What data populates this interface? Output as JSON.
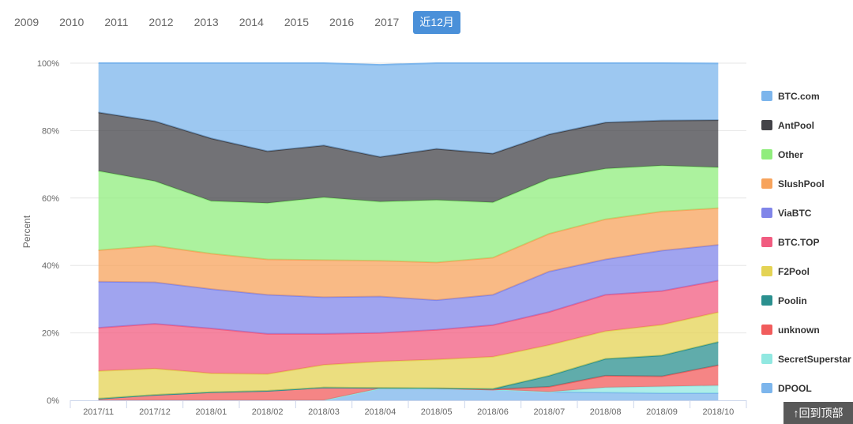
{
  "year_tabs": [
    "2009",
    "2010",
    "2011",
    "2012",
    "2013",
    "2014",
    "2015",
    "2016",
    "2017",
    "近12月"
  ],
  "active_tab": "近12月",
  "back_to_top": "↑回到顶部",
  "chart_data": {
    "type": "area",
    "stacked": "percent",
    "ylabel": "Percent",
    "ylim": [
      0,
      100
    ],
    "yticks": [
      "0%",
      "20%",
      "40%",
      "60%",
      "80%",
      "100%"
    ],
    "categories": [
      "2017/11",
      "2017/12",
      "2018/01",
      "2018/02",
      "2018/03",
      "2018/04",
      "2018/05",
      "2018/06",
      "2018/07",
      "2018/08",
      "2018/09",
      "2018/10"
    ],
    "grid": true,
    "legend_position": "right",
    "series": [
      {
        "name": "DPOOL",
        "color": "#7cb5ec",
        "values": [
          0,
          0,
          0,
          0,
          0,
          3.5,
          3.5,
          3.2,
          2.5,
          2.3,
          2.1,
          2.1
        ]
      },
      {
        "name": "SecretSuperstar",
        "color": "#91e8e1",
        "values": [
          0,
          0,
          0,
          0,
          0,
          0,
          0,
          0,
          0,
          1.5,
          2.0,
          2.3
        ]
      },
      {
        "name": "unknown",
        "color": "#f15c5c",
        "values": [
          0.5,
          1.6,
          2.4,
          2.8,
          3.8,
          0.2,
          0.1,
          0,
          1.5,
          3.5,
          3.0,
          6.0
        ]
      },
      {
        "name": "Poolin",
        "color": "#2b908f",
        "values": [
          0,
          0,
          0,
          0,
          0,
          0,
          0,
          0.2,
          3.3,
          5.0,
          6.2,
          6.9
        ]
      },
      {
        "name": "F2Pool",
        "color": "#e4d354",
        "values": [
          8.2,
          7.8,
          5.6,
          5.0,
          6.7,
          7.8,
          8.5,
          9.5,
          9.1,
          8.2,
          9.1,
          8.8
        ]
      },
      {
        "name": "BTC.TOP",
        "color": "#f15c80",
        "values": [
          12.8,
          13.3,
          13.3,
          11.9,
          9.2,
          8.5,
          8.8,
          9.4,
          9.8,
          10.8,
          10.0,
          9.4
        ]
      },
      {
        "name": "ViaBTC",
        "color": "#8085e9",
        "values": [
          13.7,
          12.3,
          11.7,
          11.6,
          10.9,
          10.8,
          8.8,
          9.0,
          12.0,
          10.5,
          12.0,
          10.6
        ]
      },
      {
        "name": "SlushPool",
        "color": "#f7a35c",
        "values": [
          9.3,
          10.8,
          10.5,
          10.5,
          11.0,
          10.6,
          11.2,
          11.0,
          11.2,
          11.9,
          11.6,
          10.9
        ]
      },
      {
        "name": "Other",
        "color": "#90ed7d",
        "values": [
          23.5,
          19.2,
          15.6,
          16.7,
          18.6,
          17.5,
          18.5,
          16.4,
          16.3,
          15.0,
          13.6,
          12.1
        ]
      },
      {
        "name": "AntPool",
        "color": "#434348",
        "values": [
          17.4,
          17.8,
          18.6,
          15.4,
          15.4,
          13.3,
          15.2,
          14.5,
          13.2,
          13.7,
          13.4,
          14.0
        ]
      },
      {
        "name": "BTC.com",
        "color": "#7cb5ec",
        "values": [
          14.6,
          17.2,
          22.3,
          26.1,
          24.4,
          27.3,
          25.4,
          26.8,
          21.1,
          17.6,
          17.0,
          16.8
        ]
      }
    ],
    "legend_order": [
      "BTC.com",
      "AntPool",
      "Other",
      "SlushPool",
      "ViaBTC",
      "BTC.TOP",
      "F2Pool",
      "Poolin",
      "unknown",
      "SecretSuperstar",
      "DPOOL"
    ]
  }
}
